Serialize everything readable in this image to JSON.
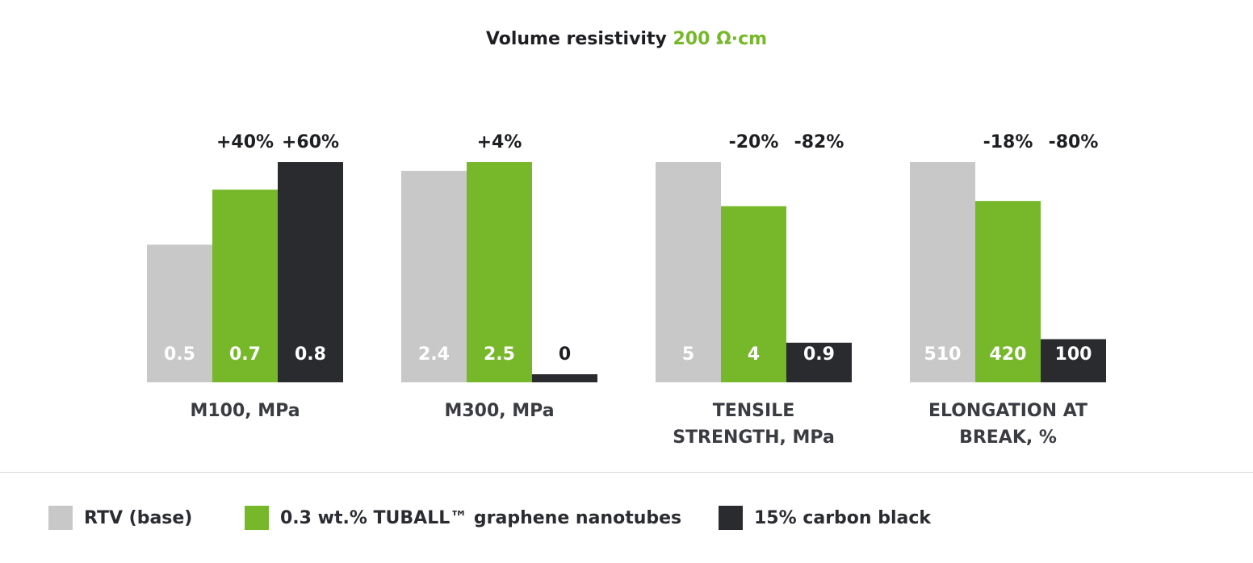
{
  "title": {
    "text": "Volume resistivity",
    "highlight": "200 Ω·cm"
  },
  "colors": {
    "rtv": "#c8c8c8",
    "tuball": "#76b82a",
    "carbon": "#2a2b2f",
    "accent": "#76b82a"
  },
  "legend": [
    {
      "label": "RTV (base)",
      "color": "#c8c8c8"
    },
    {
      "label": "0.3 wt.% TUBALL™ graphene nanotubes",
      "color": "#76b82a"
    },
    {
      "label": "15% carbon black",
      "color": "#2a2b2f"
    }
  ],
  "chart_data": {
    "type": "bar",
    "series": [
      {
        "name": "RTV (base)",
        "color": "#c8c8c8"
      },
      {
        "name": "0.3 wt.% TUBALL™ graphene nanotubes",
        "color": "#76b82a"
      },
      {
        "name": "15% carbon black",
        "color": "#2a2b2f"
      }
    ],
    "groups": [
      {
        "label_lines": [
          "M100, MPa"
        ],
        "values": [
          0.5,
          0.7,
          0.8
        ],
        "value_labels": [
          "0.5",
          "0.7",
          "0.8"
        ],
        "change_labels": [
          "",
          "+40%",
          "+60%"
        ]
      },
      {
        "label_lines": [
          "M300, MPa"
        ],
        "values": [
          2.4,
          2.5,
          0
        ],
        "value_labels": [
          "2.4",
          "2.5",
          "0"
        ],
        "change_labels": [
          "",
          "+4%",
          ""
        ]
      },
      {
        "label_lines": [
          "TENSILE",
          "STRENGTH, MPa"
        ],
        "values": [
          5,
          4,
          0.9
        ],
        "value_labels": [
          "5",
          "4",
          "0.9"
        ],
        "change_labels": [
          "",
          "-20%",
          "-82%"
        ]
      },
      {
        "label_lines": [
          "ELONGATION AT",
          "BREAK, %"
        ],
        "values": [
          510,
          420,
          100
        ],
        "value_labels": [
          "510",
          "420",
          "100"
        ],
        "change_labels": [
          "",
          "-18%",
          "-80%"
        ]
      }
    ]
  }
}
